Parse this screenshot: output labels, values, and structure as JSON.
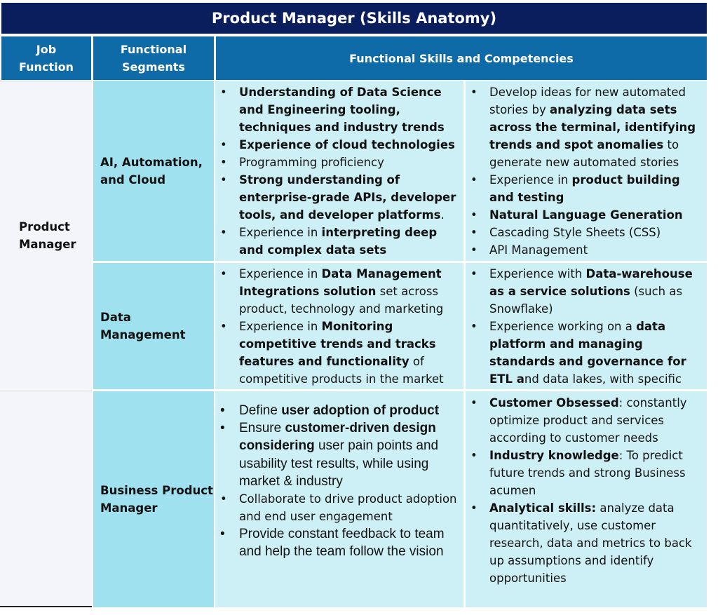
{
  "title": "Product Manager (Skills Anatomy)",
  "colors": {
    "title_bg": "#0a1e5e",
    "header_bg": "#0f6aa8",
    "light_bg": "#cdf0f6",
    "segment_bg": "#9fe1ee",
    "job_bg": "#f4f5fb"
  },
  "headers": {
    "job_function": [
      "Job",
      "Function"
    ],
    "functional_segments": [
      "Functional",
      "Segments"
    ],
    "skills": "Functional Skills and Competencies"
  },
  "job_functions": [
    [
      "Product",
      "Manager"
    ],
    []
  ],
  "segments": [
    [
      "AI, Automation,",
      "and Cloud"
    ],
    [
      "Data",
      "Management"
    ],
    [
      "Business Product",
      "Manager"
    ]
  ],
  "skills": {
    "ai_left": [
      [
        {
          "t": "Understanding of Data Science and Engineering tooling, techniques and industry trends",
          "b": true
        }
      ],
      [
        {
          "t": "Experience of cloud technologies",
          "b": true
        }
      ],
      [
        {
          "t": "Programming proficiency",
          "b": false
        }
      ],
      [
        {
          "t": "Strong understanding of enterprise-grade APIs, developer tools, and developer platforms",
          "b": true
        },
        {
          "t": ".",
          "b": false
        }
      ],
      [
        {
          "t": "Experience in ",
          "b": false
        },
        {
          "t": "interpreting deep and complex data sets",
          "b": true
        }
      ]
    ],
    "ai_right": [
      [
        {
          "t": "Develop ideas for new automated stories by ",
          "b": false
        },
        {
          "t": "analyzing data sets across the terminal, identifying trends and spot anomalies",
          "b": true
        },
        {
          "t": " to generate new automated stories",
          "b": false
        }
      ],
      [
        {
          "t": "Experience in ",
          "b": false
        },
        {
          "t": "product building and testing",
          "b": true
        }
      ],
      [
        {
          "t": "Natural Language Generation",
          "b": true
        }
      ],
      [
        {
          "t": "Cascading Style Sheets (CSS)",
          "b": false
        }
      ],
      [
        {
          "t": "API Management",
          "b": false
        }
      ]
    ],
    "dm_left": [
      [
        {
          "t": "Experience in ",
          "b": false
        },
        {
          "t": "Data Management Integrations solution",
          "b": true
        },
        {
          "t": " set across product, technology and marketing",
          "b": false
        }
      ],
      [
        {
          "t": "Experience in ",
          "b": false
        },
        {
          "t": "Monitoring competitive trends and tracks features and functionality",
          "b": true
        },
        {
          "t": " of competitive products in the market",
          "b": false
        }
      ]
    ],
    "dm_right": [
      [
        {
          "t": "Experience with ",
          "b": false
        },
        {
          "t": "Data-warehouse as a service solutions",
          "b": true
        },
        {
          "t": " (such as Snowflake)",
          "b": false
        }
      ],
      [
        {
          "t": "Experience working on a ",
          "b": false
        },
        {
          "t": "data platform and managing standards and governance for ETL a",
          "b": true
        },
        {
          "t": "nd data lakes, with specific exposure to",
          "b": false
        }
      ]
    ],
    "bpm_left": [
      {
        "small": false,
        "runs": [
          {
            "t": "Define ",
            "b": false
          },
          {
            "t": "user adoption of product",
            "b": true
          }
        ]
      },
      {
        "small": false,
        "runs": [
          {
            "t": "Ensure ",
            "b": false
          },
          {
            "t": "customer-driven design considering",
            "b": true
          },
          {
            "t": " user pain points and usability test results, while using market & industry",
            "b": false
          }
        ]
      },
      {
        "small": true,
        "runs": [
          {
            "t": "Collaborate to drive product adoption and end user engagement",
            "b": false
          }
        ]
      },
      {
        "small": false,
        "runs": [
          {
            "t": "Provide constant feedback to team and help the team follow the vision",
            "b": false
          }
        ]
      }
    ],
    "bpm_right": [
      [
        {
          "t": "Customer Obsessed",
          "b": true
        },
        {
          "t": ": constantly optimize product and services according to customer needs",
          "b": false
        }
      ],
      [
        {
          "t": "Industry knowledge",
          "b": true
        },
        {
          "t": ": To predict future trends and strong Business acumen",
          "b": false
        }
      ],
      [
        {
          "t": "Analytical skills:",
          "b": true
        },
        {
          "t": " analyze data quantitatively, use customer research, data and metrics to back up assumptions and identify opportunities",
          "b": false
        }
      ]
    ]
  }
}
